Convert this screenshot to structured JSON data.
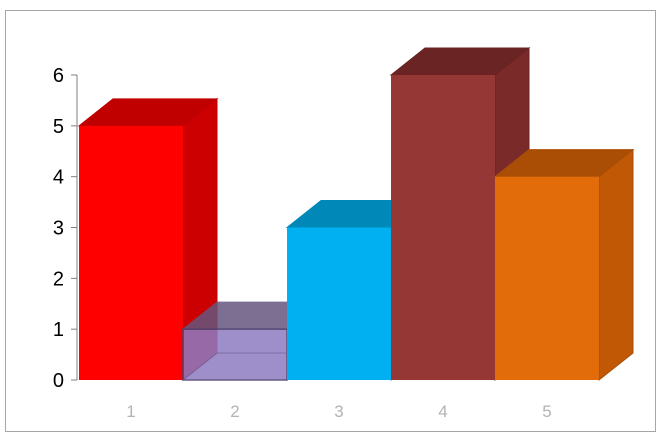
{
  "chart_data": {
    "type": "bar",
    "style": "3d-column",
    "categories": [
      "1",
      "2",
      "3",
      "4",
      "5"
    ],
    "values": [
      5,
      1,
      3,
      6,
      4
    ],
    "ylim": [
      0,
      6
    ],
    "yticks": [
      "0",
      "1",
      "2",
      "3",
      "4",
      "5",
      "6"
    ],
    "grid": false,
    "legend": "none",
    "colors": [
      {
        "front": "#ff0000",
        "top": "#c00000",
        "side": "#cc0000"
      },
      {
        "front": "#8e7cc3",
        "top": "#66567f",
        "side": "#6d5c91",
        "translucent": true
      },
      {
        "front": "#00b0f0",
        "top": "#0089b8",
        "side": "#0098cf"
      },
      {
        "front": "#953735",
        "top": "#6a2423",
        "side": "#7a2a29"
      },
      {
        "front": "#e36c0a",
        "top": "#a94e04",
        "side": "#c05806"
      }
    ]
  }
}
